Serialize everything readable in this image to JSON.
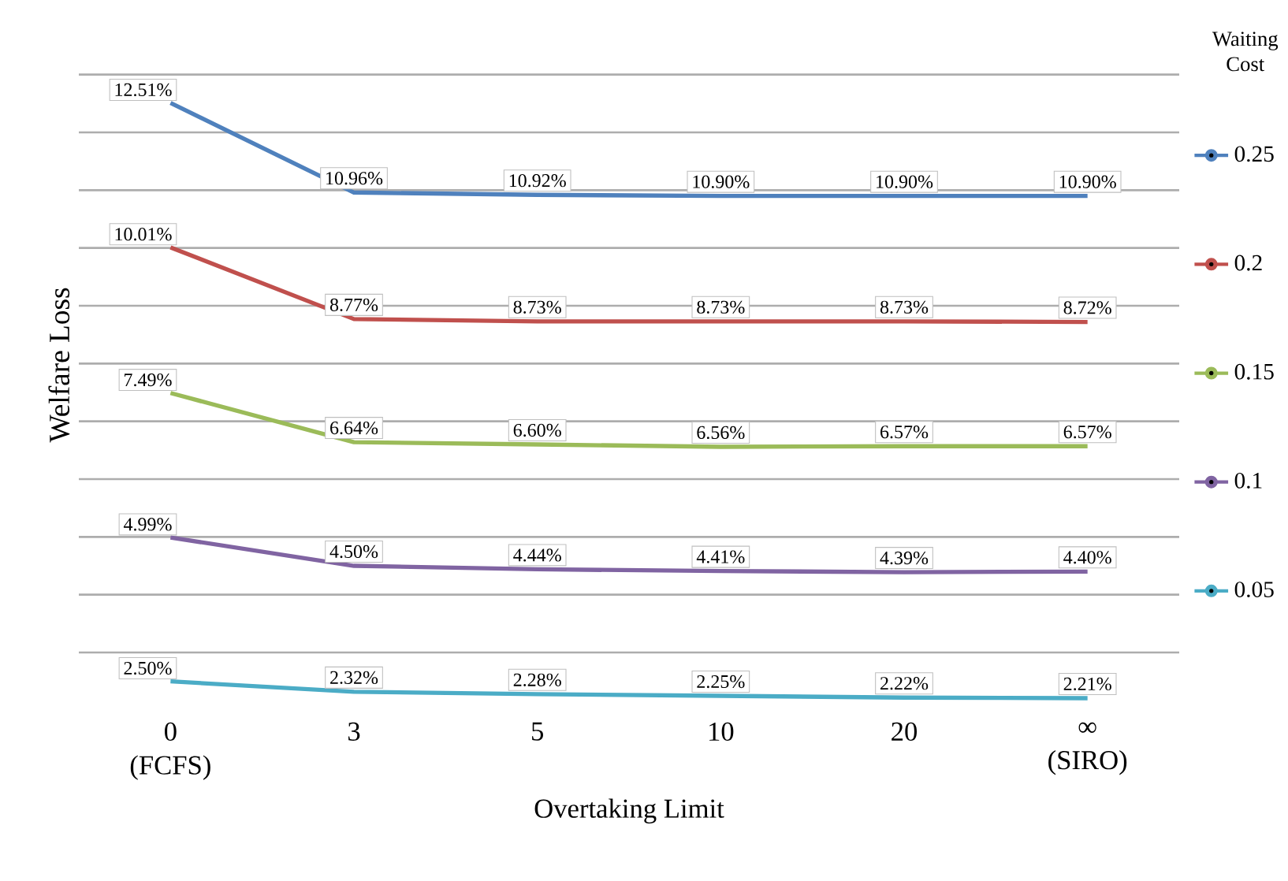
{
  "chart_data": {
    "type": "line",
    "xlabel": "Overtaking Limit",
    "ylabel": "Welfare Loss",
    "legend_title": "Waiting Cost",
    "categories": [
      "0 (FCFS)",
      "3",
      "5",
      "10",
      "20",
      "∞ (SIRO)"
    ],
    "tick_labels": "x",
    "grid": "y",
    "legend": "right",
    "series": [
      {
        "name": "0.25",
        "color": "#4f81bd",
        "values": [
          12.51,
          10.96,
          10.92,
          10.9,
          10.9,
          10.9
        ],
        "value_labels": [
          "12.51%",
          "10.96%",
          "10.92%",
          "10.90%",
          "10.90%",
          "10.90%"
        ]
      },
      {
        "name": "0.2",
        "color": "#c0504d",
        "values": [
          10.01,
          8.77,
          8.73,
          8.73,
          8.73,
          8.72
        ],
        "value_labels": [
          "10.01%",
          "8.77%",
          "8.73%",
          "8.73%",
          "8.73%",
          "8.72%"
        ]
      },
      {
        "name": "0.15",
        "color": "#9bbb59",
        "values": [
          7.49,
          6.64,
          6.6,
          6.56,
          6.57,
          6.57
        ],
        "value_labels": [
          "7.49%",
          "6.64%",
          "6.60%",
          "6.56%",
          "6.57%",
          "6.57%"
        ]
      },
      {
        "name": "0.1",
        "color": "#8064a2",
        "values": [
          4.99,
          4.5,
          4.44,
          4.41,
          4.39,
          4.4
        ],
        "value_labels": [
          "4.99%",
          "4.50%",
          "4.44%",
          "4.41%",
          "4.39%",
          "4.40%"
        ]
      },
      {
        "name": "0.05",
        "color": "#4bacc6",
        "values": [
          2.5,
          2.32,
          2.28,
          2.25,
          2.22,
          2.21
        ],
        "value_labels": [
          "2.50%",
          "2.32%",
          "2.28%",
          "2.25%",
          "2.22%",
          "2.21%"
        ]
      }
    ]
  }
}
